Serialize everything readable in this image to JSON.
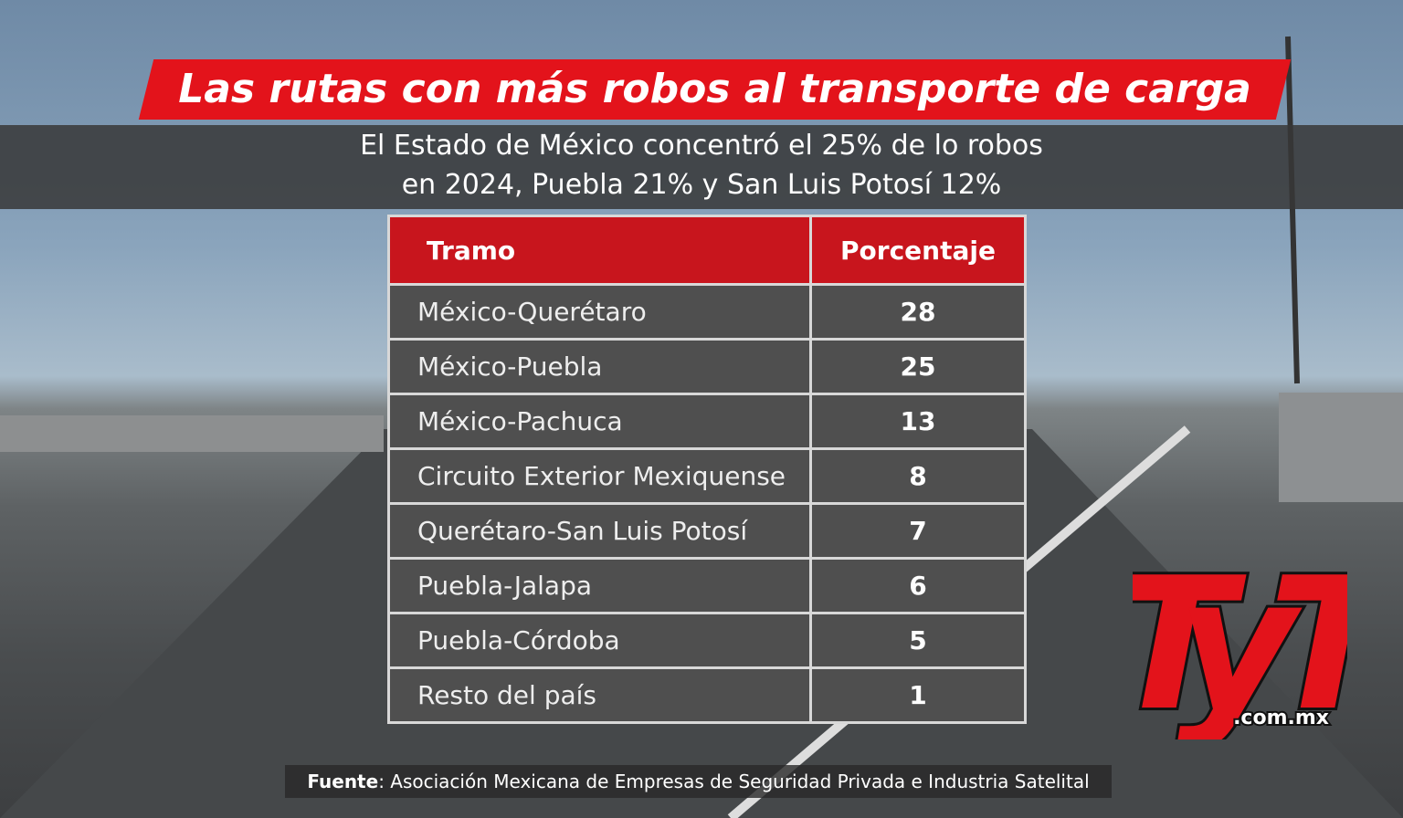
{
  "header": {
    "title": "Las rutas con más robos al transporte de carga",
    "subtitle": [
      "El Estado de México concentró el 25% de lo robos",
      "en 2024, Puebla 21% y San Luis Potosí 12%"
    ]
  },
  "table": {
    "columns": [
      "Tramo",
      "Porcentaje"
    ],
    "rows": [
      [
        "México-Querétaro",
        28
      ],
      [
        "México-Puebla",
        25
      ],
      [
        "México-Pachuca",
        13
      ],
      [
        "Circuito Exterior Mexiquense",
        8
      ],
      [
        "Querétaro-San Luis Potosí",
        7
      ],
      [
        "Puebla-Jalapa",
        6
      ],
      [
        "Puebla-Córdoba",
        5
      ],
      [
        "Resto del país",
        1
      ]
    ]
  },
  "source": {
    "label": "Fuente",
    "text": ": Asociación Mexicana de Empresas de Seguridad Privada e Industria Satelital"
  },
  "logo": {
    "text": "TyT",
    "domain": ".com.mx"
  }
}
